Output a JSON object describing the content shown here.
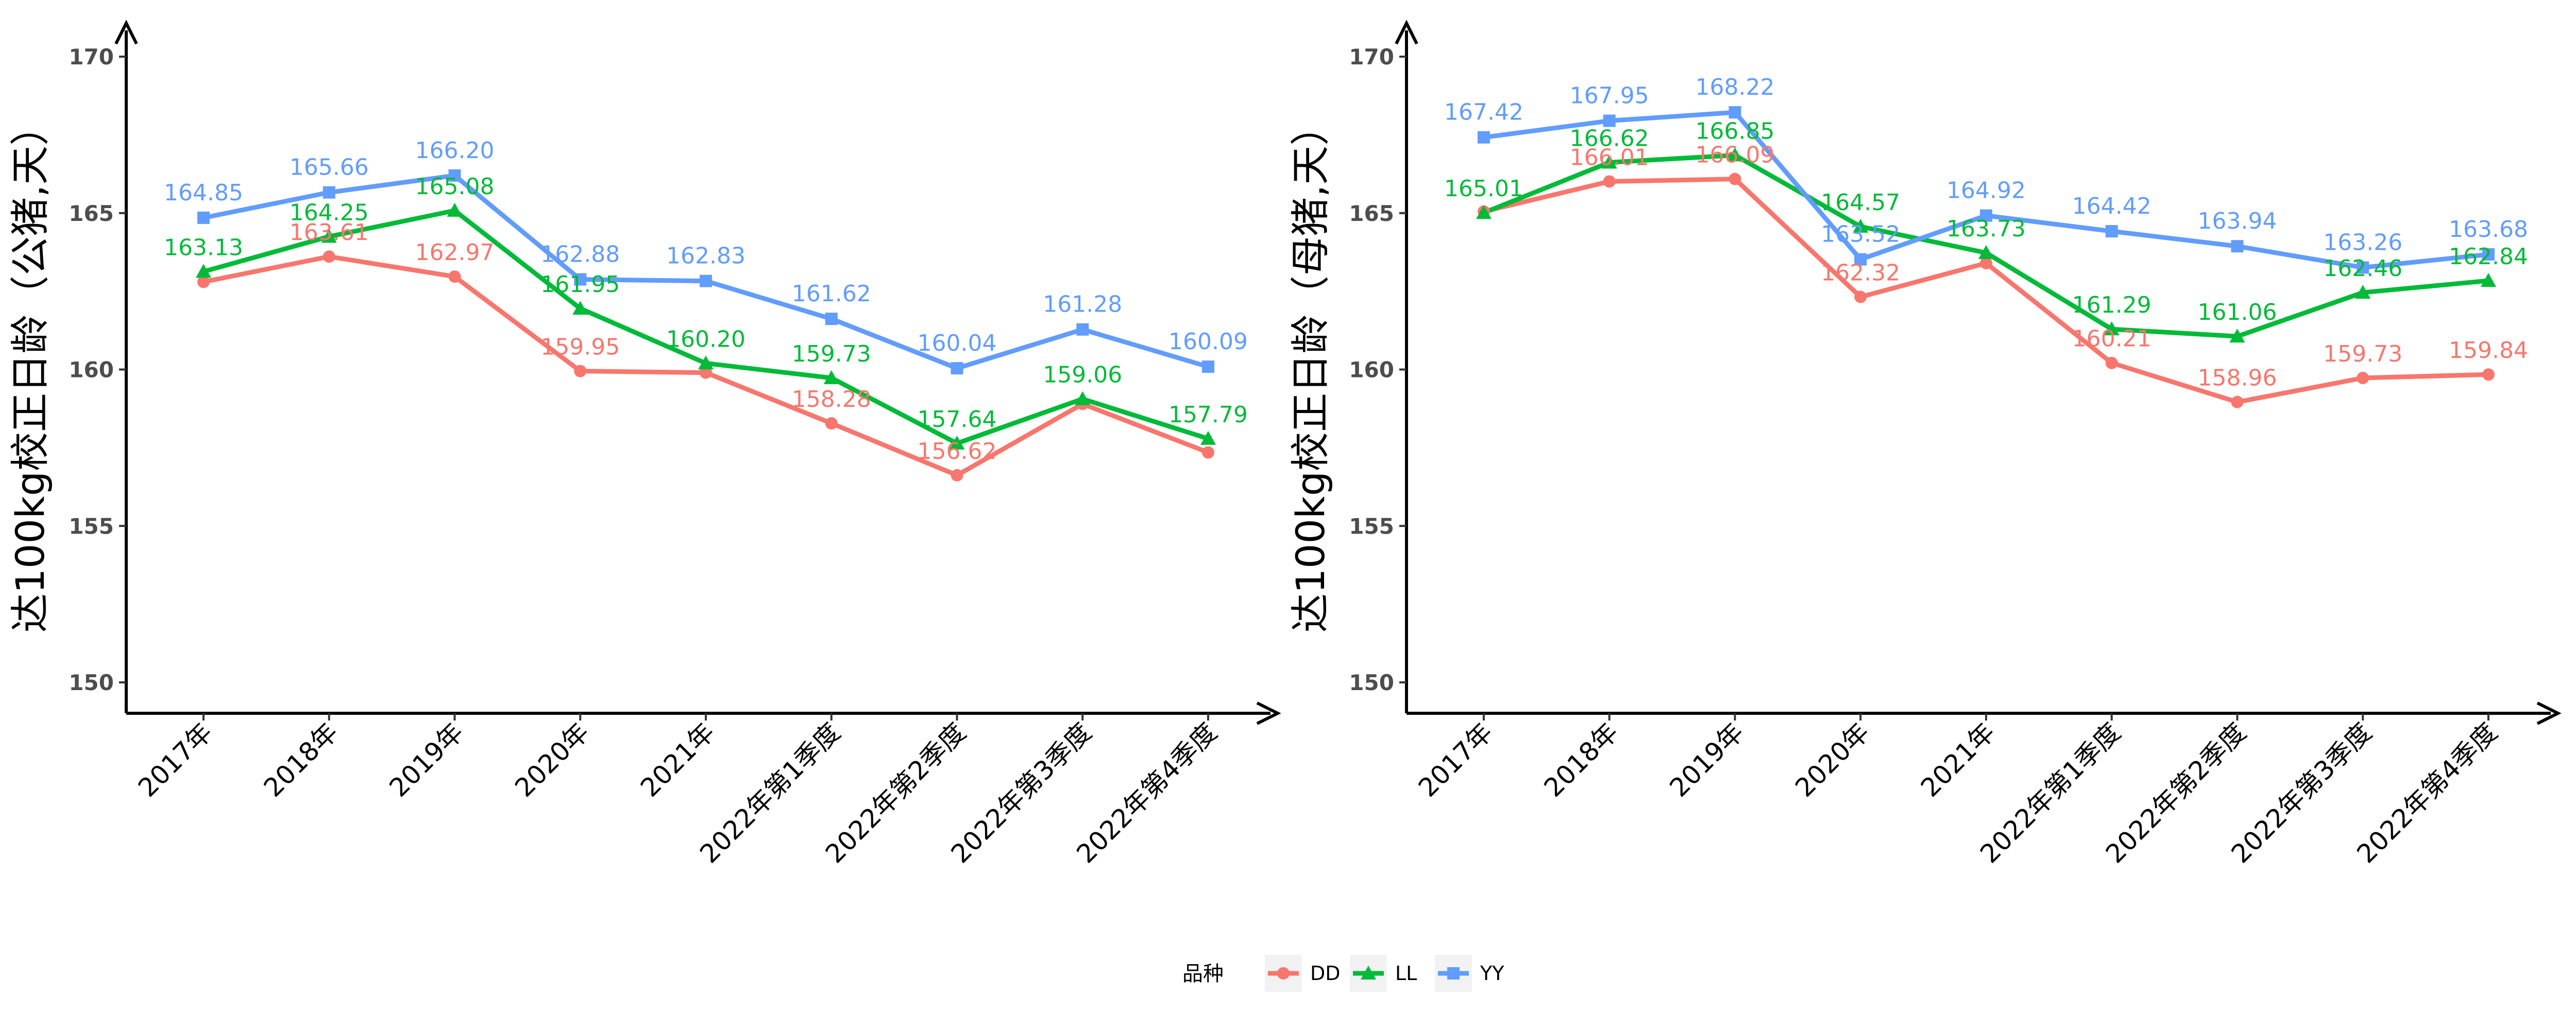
{
  "colors": {
    "DD": "#F8766D",
    "LL": "#00BA38",
    "YY": "#619CFF"
  },
  "legend": {
    "title": "品种",
    "items": [
      {
        "key": "DD",
        "label": "DD",
        "marker": "circle"
      },
      {
        "key": "LL",
        "label": "LL",
        "marker": "triangle"
      },
      {
        "key": "YY",
        "label": "YY",
        "marker": "square"
      }
    ]
  },
  "chart_data": [
    {
      "type": "line",
      "ylabel": "达100kg校正日龄（公猪,天）",
      "xlabel": "",
      "ylim": [
        150,
        170
      ],
      "yticks": [
        150,
        155,
        160,
        165,
        170
      ],
      "categories": [
        "2017年",
        "2018年",
        "2019年",
        "2020年",
        "2021年",
        "2022年第1季度",
        "2022年第2季度",
        "2022年第3季度",
        "2022年第4季度"
      ],
      "series": [
        {
          "name": "DD",
          "values": [
            162.8,
            163.61,
            162.97,
            159.95,
            159.9,
            158.28,
            156.62,
            158.9,
            157.35
          ],
          "labels": [
            "",
            "163.61",
            "162.97",
            "159.95",
            "",
            "158.28",
            "156.62",
            "",
            ""
          ]
        },
        {
          "name": "LL",
          "values": [
            163.13,
            164.25,
            165.08,
            161.95,
            160.2,
            159.73,
            157.64,
            159.06,
            157.79
          ],
          "labels": [
            "163.13",
            "164.25",
            "165.08",
            "161.95",
            "160.20",
            "159.73",
            "157.64",
            "159.06",
            "157.79"
          ]
        },
        {
          "name": "YY",
          "values": [
            164.85,
            165.66,
            166.2,
            162.88,
            162.83,
            161.62,
            160.04,
            161.28,
            160.09
          ],
          "labels": [
            "164.85",
            "165.66",
            "166.20",
            "162.88",
            "162.83",
            "161.62",
            "160.04",
            "161.28",
            "160.09"
          ]
        }
      ],
      "grid": false,
      "legend_position": "bottom"
    },
    {
      "type": "line",
      "ylabel": "达100kg校正日龄（母猪,天）",
      "xlabel": "",
      "ylim": [
        150,
        170
      ],
      "yticks": [
        150,
        155,
        160,
        165,
        170
      ],
      "categories": [
        "2017年",
        "2018年",
        "2019年",
        "2020年",
        "2021年",
        "2022年第1季度",
        "2022年第2季度",
        "2022年第3季度",
        "2022年第4季度"
      ],
      "series": [
        {
          "name": "DD",
          "values": [
            165.05,
            166.01,
            166.09,
            162.32,
            163.4,
            160.21,
            158.96,
            159.73,
            159.84
          ],
          "labels": [
            "",
            "166.01",
            "166.09",
            "162.32",
            "",
            "160.21",
            "158.96",
            "159.73",
            "159.84"
          ]
        },
        {
          "name": "LL",
          "values": [
            165.01,
            166.62,
            166.85,
            164.57,
            163.73,
            161.29,
            161.06,
            162.46,
            162.84
          ],
          "labels": [
            "165.01",
            "166.62",
            "166.85",
            "164.57",
            "163.73",
            "161.29",
            "161.06",
            "162.46",
            "162.84"
          ]
        },
        {
          "name": "YY",
          "values": [
            167.42,
            167.95,
            168.22,
            163.52,
            164.92,
            164.42,
            163.94,
            163.26,
            163.68
          ],
          "labels": [
            "167.42",
            "167.95",
            "168.22",
            "163.52",
            "164.92",
            "164.42",
            "163.94",
            "163.26",
            "163.68"
          ]
        }
      ],
      "grid": false,
      "legend_position": "bottom"
    }
  ]
}
